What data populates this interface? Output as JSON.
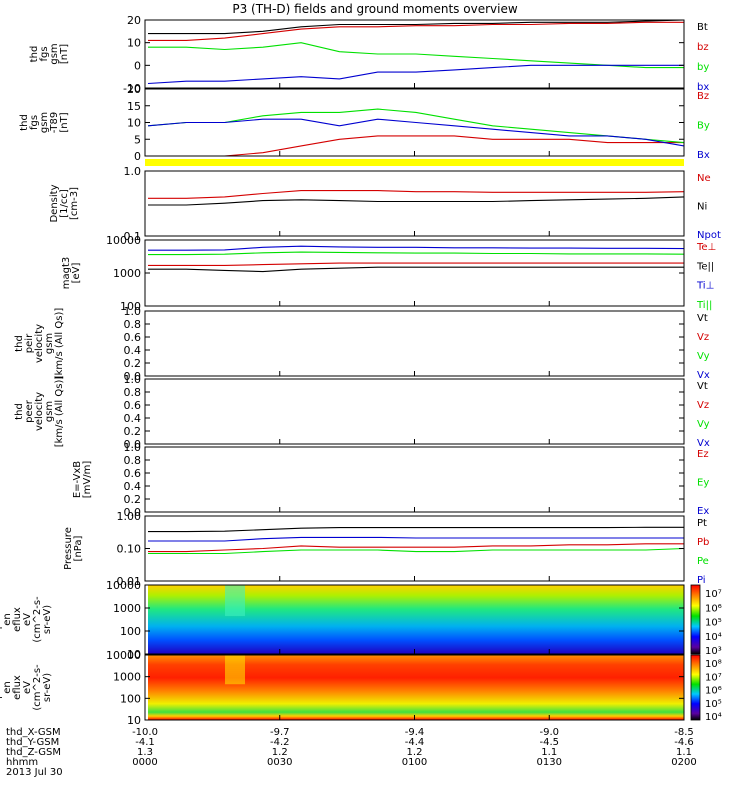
{
  "title": "P3 (TH-D) fields and ground moments overview",
  "time_axis": {
    "rows": [
      {
        "label": "thd_X-GSM",
        "values": [
          "-10.0",
          "-9.7",
          "-9.4",
          "-9.0",
          "-8.5"
        ]
      },
      {
        "label": "thd_Y-GSM",
        "values": [
          "-4.1",
          "-4.2",
          "-4.4",
          "-4.5",
          "-4.6"
        ]
      },
      {
        "label": "thd_Z-GSM",
        "values": [
          "1.3",
          "1.2",
          "1.2",
          "1.1",
          "1.1"
        ]
      },
      {
        "label": "hhmm",
        "values": [
          "0000",
          "0030",
          "0100",
          "0130",
          "0200"
        ]
      }
    ],
    "date": "2013 Jul 30"
  },
  "colors": {
    "black": "#000000",
    "red": "#d40000",
    "green": "#00e000",
    "blue": "#0000d0",
    "yellow": "#ffff00"
  },
  "chart_data": [
    {
      "type": "line",
      "ylabel": [
        "thd",
        "fgs",
        "gsm",
        "[nT]"
      ],
      "ylim": [
        -10,
        20
      ],
      "yticks": [
        "20",
        "10",
        "0",
        "-10"
      ],
      "series": [
        {
          "name": "Bt",
          "color": "#000000",
          "values": [
            14,
            14,
            14,
            15,
            17,
            18,
            18,
            18,
            18.5,
            18.5,
            19,
            19,
            19,
            19.5,
            20
          ]
        },
        {
          "name": "bz",
          "color": "#d40000",
          "values": [
            11,
            11,
            12,
            14,
            16,
            17,
            17,
            17.5,
            17.5,
            18,
            18,
            18.5,
            18.5,
            19,
            19
          ]
        },
        {
          "name": "by",
          "color": "#00e000",
          "values": [
            8,
            8,
            7,
            8,
            10,
            6,
            5,
            5,
            4,
            3,
            2,
            1,
            0,
            -1,
            -1
          ]
        },
        {
          "name": "bx",
          "color": "#0000d0",
          "values": [
            -8,
            -7,
            -7,
            -6,
            -5,
            -6,
            -3,
            -3,
            -2,
            -1,
            0,
            0,
            0,
            0,
            0
          ]
        }
      ]
    },
    {
      "type": "line",
      "ylabel": [
        "thd",
        "fgs",
        "gsm",
        "-T89",
        "[nT]"
      ],
      "ylim": [
        0,
        20
      ],
      "yticks": [
        "20",
        "15",
        "10",
        "5",
        "0"
      ],
      "series": [
        {
          "name": "Bz",
          "color": "#d40000",
          "values": [
            0,
            0,
            0,
            1,
            3,
            5,
            6,
            6,
            6,
            5,
            5,
            5,
            4,
            4,
            4
          ]
        },
        {
          "name": "By",
          "color": "#00e000",
          "values": [
            9,
            10,
            10,
            12,
            13,
            13,
            14,
            13,
            11,
            9,
            8,
            7,
            6,
            5,
            4
          ]
        },
        {
          "name": "Bx",
          "color": "#0000d0",
          "values": [
            9,
            10,
            10,
            11,
            11,
            9,
            11,
            10,
            9,
            8,
            7,
            6,
            6,
            5,
            3
          ]
        }
      ]
    },
    {
      "type": "line",
      "scale": "log",
      "ylabel": [
        "Density",
        "[1/cc]",
        "[cm-3]"
      ],
      "ylim": [
        0.1,
        1.0
      ],
      "yticks": [
        "1.0",
        "0.1"
      ],
      "series": [
        {
          "name": "Ne",
          "color": "#d40000",
          "values": [
            0.38,
            0.38,
            0.4,
            0.45,
            0.5,
            0.5,
            0.5,
            0.48,
            0.48,
            0.47,
            0.47,
            0.47,
            0.47,
            0.47,
            0.48
          ]
        },
        {
          "name": "Ni",
          "color": "#000000",
          "values": [
            0.3,
            0.3,
            0.32,
            0.35,
            0.36,
            0.35,
            0.34,
            0.34,
            0.34,
            0.34,
            0.35,
            0.36,
            0.37,
            0.38,
            0.4
          ]
        },
        {
          "name": "Npot",
          "color": "#0000d0",
          "values": []
        }
      ]
    },
    {
      "type": "line",
      "scale": "log",
      "ylabel": [
        "magt3",
        "[eV]"
      ],
      "ylim": [
        100,
        10000
      ],
      "yticks": [
        "10000",
        "1000",
        "100"
      ],
      "series": [
        {
          "name": "Te⊥",
          "color": "#d40000",
          "values": [
            1700,
            1700,
            1700,
            1800,
            1900,
            2000,
            2000,
            2000,
            2000,
            2000,
            2000,
            2000,
            2000,
            2000,
            2000
          ]
        },
        {
          "name": "Te||",
          "color": "#000000",
          "values": [
            1300,
            1300,
            1200,
            1100,
            1300,
            1400,
            1500,
            1500,
            1500,
            1500,
            1500,
            1500,
            1500,
            1500,
            1500
          ]
        },
        {
          "name": "Ti⊥",
          "color": "#0000d0",
          "values": [
            4900,
            4900,
            5000,
            6000,
            6500,
            6200,
            6000,
            6000,
            5800,
            5800,
            5700,
            5700,
            5600,
            5600,
            5500
          ]
        },
        {
          "name": "Ti||",
          "color": "#00e000",
          "values": [
            3600,
            3600,
            3700,
            4100,
            4300,
            4200,
            4100,
            4000,
            4000,
            3900,
            3900,
            3800,
            3800,
            3800,
            3700
          ]
        }
      ]
    },
    {
      "type": "line",
      "ylabel": [
        "thd",
        "peir",
        "velocity",
        "gsm",
        "[km/s (All Qs)]"
      ],
      "ylim": [
        0,
        1.0
      ],
      "yticks": [
        "1.0",
        "0.8",
        "0.6",
        "0.4",
        "0.2",
        "0.0"
      ],
      "series": [
        {
          "name": "Vt",
          "color": "#000000",
          "values": []
        },
        {
          "name": "Vz",
          "color": "#d40000",
          "values": []
        },
        {
          "name": "Vy",
          "color": "#00e000",
          "values": []
        },
        {
          "name": "Vx",
          "color": "#0000d0",
          "values": []
        }
      ]
    },
    {
      "type": "line",
      "ylabel": [
        "thd",
        "peer",
        "velocity",
        "gsm",
        "[km/s (All Qs)]"
      ],
      "ylim": [
        0,
        1.0
      ],
      "yticks": [
        "1.0",
        "0.8",
        "0.6",
        "0.4",
        "0.2",
        "0.0"
      ],
      "series": [
        {
          "name": "Vt",
          "color": "#000000",
          "values": []
        },
        {
          "name": "Vz",
          "color": "#d40000",
          "values": []
        },
        {
          "name": "Vy",
          "color": "#00e000",
          "values": []
        },
        {
          "name": "Vx",
          "color": "#0000d0",
          "values": []
        }
      ]
    },
    {
      "type": "line",
      "ylabel": [
        "E=-VxB",
        "[mV/m]"
      ],
      "ylim": [
        0,
        1.0
      ],
      "yticks": [
        "1.0",
        "0.8",
        "0.6",
        "0.4",
        "0.2",
        "0.0"
      ],
      "series": [
        {
          "name": "Ez",
          "color": "#d40000",
          "values": []
        },
        {
          "name": "Ey",
          "color": "#00e000",
          "values": []
        },
        {
          "name": "Ex",
          "color": "#0000d0",
          "values": []
        }
      ]
    },
    {
      "type": "line",
      "scale": "log",
      "ylabel": [
        "Pressure",
        "[nPa]"
      ],
      "ylim": [
        0.01,
        1.0
      ],
      "yticks": [
        "1.00",
        "0.10",
        "0.01"
      ],
      "series": [
        {
          "name": "Pt",
          "color": "#000000",
          "values": [
            0.33,
            0.33,
            0.34,
            0.38,
            0.42,
            0.44,
            0.44,
            0.44,
            0.44,
            0.44,
            0.44,
            0.44,
            0.44,
            0.45,
            0.45
          ]
        },
        {
          "name": "Pb",
          "color": "#d40000",
          "values": [
            0.08,
            0.08,
            0.09,
            0.1,
            0.12,
            0.11,
            0.11,
            0.11,
            0.11,
            0.12,
            0.12,
            0.13,
            0.13,
            0.14,
            0.14
          ]
        },
        {
          "name": "Pe",
          "color": "#00e000",
          "values": [
            0.07,
            0.07,
            0.07,
            0.08,
            0.09,
            0.09,
            0.09,
            0.08,
            0.08,
            0.09,
            0.09,
            0.09,
            0.09,
            0.09,
            0.1
          ]
        },
        {
          "name": "Pi",
          "color": "#0000d0",
          "values": [
            0.17,
            0.17,
            0.17,
            0.2,
            0.22,
            0.22,
            0.22,
            0.21,
            0.21,
            0.21,
            0.21,
            0.21,
            0.21,
            0.21,
            0.21
          ]
        }
      ]
    },
    {
      "type": "heatmap",
      "scale": "log",
      "ylabel": [
        "thd",
        "peir",
        "en",
        "eflux",
        "eV",
        "(cm^2-s-",
        "sr-eV)"
      ],
      "ylim": [
        10,
        10000
      ],
      "yticks": [
        "10000",
        "1000",
        "100",
        "10"
      ],
      "colorbar_ticks": [
        "10⁷",
        "10⁶",
        "10⁵",
        "10⁴",
        "10³"
      ]
    },
    {
      "type": "heatmap",
      "scale": "log",
      "ylabel": [
        "thd",
        "peer",
        "en",
        "eflux",
        "eV",
        "(cm^2-s-",
        "sr-eV)"
      ],
      "ylim": [
        10,
        10000
      ],
      "yticks": [
        "10000",
        "1000",
        "100",
        "10"
      ],
      "colorbar_ticks": [
        "10⁸",
        "10⁷",
        "10⁶",
        "10⁵",
        "10⁴"
      ]
    }
  ]
}
